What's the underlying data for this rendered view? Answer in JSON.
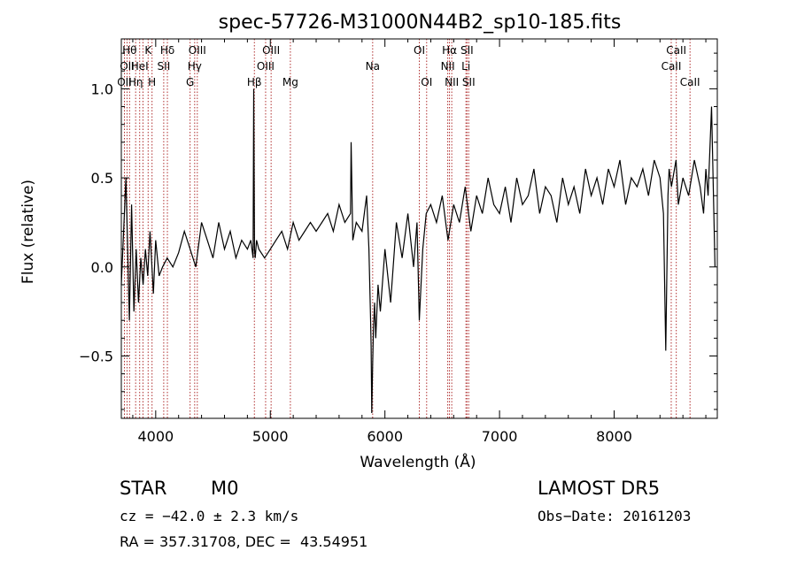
{
  "chart_data": {
    "type": "line",
    "title": "spec-57726-M31000N44B2_sp10-185.fits",
    "xlabel": "Wavelength (Å)",
    "ylabel": "Flux (relative)",
    "xlim": [
      3700,
      8900
    ],
    "ylim": [
      -0.85,
      1.28
    ],
    "xticks": [
      4000,
      5000,
      6000,
      7000,
      8000
    ],
    "yticks": [
      -0.5,
      0.0,
      0.5,
      1.0
    ],
    "xtick_labels": [
      "4000",
      "5000",
      "6000",
      "7000",
      "8000"
    ],
    "ytick_labels": [
      "−0.5",
      "0.0",
      "0.5",
      "1.0"
    ],
    "grid": false,
    "series": [
      {
        "x": [
          3700,
          3740,
          3770,
          3790,
          3810,
          3830,
          3850,
          3870,
          3890,
          3910,
          3930,
          3950,
          3980,
          4000,
          4030,
          4060,
          4100,
          4150,
          4200,
          4250,
          4300,
          4350,
          4400,
          4450,
          4500,
          4550,
          4600,
          4650,
          4700,
          4750,
          4800,
          4830,
          4850,
          4855,
          4862,
          4868,
          4880,
          4900,
          4950,
          5000,
          5050,
          5100,
          5150,
          5200,
          5250,
          5300,
          5350,
          5400,
          5450,
          5500,
          5550,
          5600,
          5650,
          5700,
          5705,
          5720,
          5750,
          5800,
          5840,
          5860,
          5875,
          5880,
          5885,
          5893,
          5900,
          5910,
          5920,
          5940,
          5960,
          6000,
          6050,
          6100,
          6150,
          6200,
          6250,
          6280,
          6300,
          6330,
          6360,
          6400,
          6450,
          6500,
          6550,
          6600,
          6650,
          6700,
          6750,
          6800,
          6850,
          6900,
          6950,
          7000,
          7050,
          7100,
          7150,
          7200,
          7250,
          7300,
          7350,
          7400,
          7450,
          7500,
          7550,
          7600,
          7650,
          7700,
          7750,
          7800,
          7850,
          7900,
          7950,
          8000,
          8050,
          8100,
          8150,
          8200,
          8250,
          8300,
          8350,
          8400,
          8430,
          8450,
          8470,
          8480,
          8500,
          8540,
          8560,
          8600,
          8650,
          8700,
          8750,
          8780,
          8800,
          8820,
          8850,
          8880
        ],
        "values": [
          -0.1,
          0.5,
          -0.3,
          0.35,
          -0.25,
          0.1,
          -0.2,
          0.05,
          -0.1,
          0.1,
          -0.05,
          0.2,
          -0.15,
          0.15,
          -0.05,
          0.0,
          0.05,
          0.0,
          0.08,
          0.2,
          0.1,
          0.0,
          0.25,
          0.15,
          0.05,
          0.25,
          0.1,
          0.2,
          0.05,
          0.15,
          0.1,
          0.15,
          0.05,
          1.0,
          0.1,
          0.05,
          0.15,
          0.1,
          0.05,
          0.1,
          0.15,
          0.2,
          0.1,
          0.25,
          0.15,
          0.2,
          0.25,
          0.2,
          0.25,
          0.3,
          0.2,
          0.35,
          0.25,
          0.3,
          0.7,
          0.15,
          0.25,
          0.2,
          0.4,
          0.1,
          -0.3,
          -0.45,
          -0.82,
          -0.55,
          -0.35,
          -0.2,
          -0.4,
          -0.1,
          -0.25,
          0.1,
          -0.2,
          0.25,
          0.05,
          0.3,
          0.0,
          0.25,
          -0.3,
          0.1,
          0.3,
          0.35,
          0.25,
          0.4,
          0.15,
          0.35,
          0.25,
          0.45,
          0.2,
          0.4,
          0.3,
          0.5,
          0.35,
          0.3,
          0.45,
          0.25,
          0.5,
          0.35,
          0.4,
          0.55,
          0.3,
          0.45,
          0.4,
          0.25,
          0.5,
          0.35,
          0.45,
          0.3,
          0.55,
          0.4,
          0.5,
          0.35,
          0.55,
          0.45,
          0.6,
          0.35,
          0.5,
          0.45,
          0.55,
          0.4,
          0.6,
          0.5,
          0.3,
          -0.47,
          0.4,
          0.55,
          0.45,
          0.6,
          0.35,
          0.5,
          0.4,
          0.6,
          0.45,
          0.3,
          0.55,
          0.4,
          0.9,
          0.0
        ]
      }
    ],
    "line_markers": [
      {
        "x": 3727,
        "label": "OII",
        "row": 2
      },
      {
        "x": 3750,
        "label": "OII",
        "row": 1
      },
      {
        "x": 3772,
        "label": "Hθ",
        "row": 0
      },
      {
        "x": 3825,
        "label": "Hη",
        "row": 2
      },
      {
        "x": 3860,
        "label": "HeI",
        "row": 1
      },
      {
        "x": 3889,
        "label": "",
        "row": 0
      },
      {
        "x": 3934,
        "label": "K",
        "row": 0
      },
      {
        "x": 3968,
        "label": "H",
        "row": 2
      },
      {
        "x": 4070,
        "label": "SII",
        "row": 1
      },
      {
        "x": 4102,
        "label": "Hδ",
        "row": 0
      },
      {
        "x": 4300,
        "label": "G",
        "row": 2
      },
      {
        "x": 4340,
        "label": "Hγ",
        "row": 1
      },
      {
        "x": 4363,
        "label": "OIII",
        "row": 0
      },
      {
        "x": 4861,
        "label": "Hβ",
        "row": 2
      },
      {
        "x": 4959,
        "label": "OIII",
        "row": 1
      },
      {
        "x": 5007,
        "label": "OIII",
        "row": 0
      },
      {
        "x": 5175,
        "label": "Mg",
        "row": 2
      },
      {
        "x": 5893,
        "label": "Na",
        "row": 1
      },
      {
        "x": 6300,
        "label": "OI",
        "row": 0
      },
      {
        "x": 6364,
        "label": "OI",
        "row": 2
      },
      {
        "x": 6548,
        "label": "NII",
        "row": 1
      },
      {
        "x": 6563,
        "label": "Hα",
        "row": 0
      },
      {
        "x": 6583,
        "label": "NII",
        "row": 2
      },
      {
        "x": 6707,
        "label": "Li",
        "row": 1
      },
      {
        "x": 6716,
        "label": "SII",
        "row": 0
      },
      {
        "x": 6731,
        "label": "SII",
        "row": 2
      },
      {
        "x": 8498,
        "label": "CaII",
        "row": 1
      },
      {
        "x": 8542,
        "label": "CaII",
        "row": 0
      },
      {
        "x": 8662,
        "label": "CaII",
        "row": 2
      }
    ]
  },
  "info": {
    "class": "STAR",
    "subclass": "M0",
    "survey": "LAMOST DR5",
    "cz": "cz = −42.0 ± 2.3 km/s",
    "obs_date": "Obs−Date: 20161203",
    "coords": "RA = 357.31708, DEC =  43.54951"
  }
}
